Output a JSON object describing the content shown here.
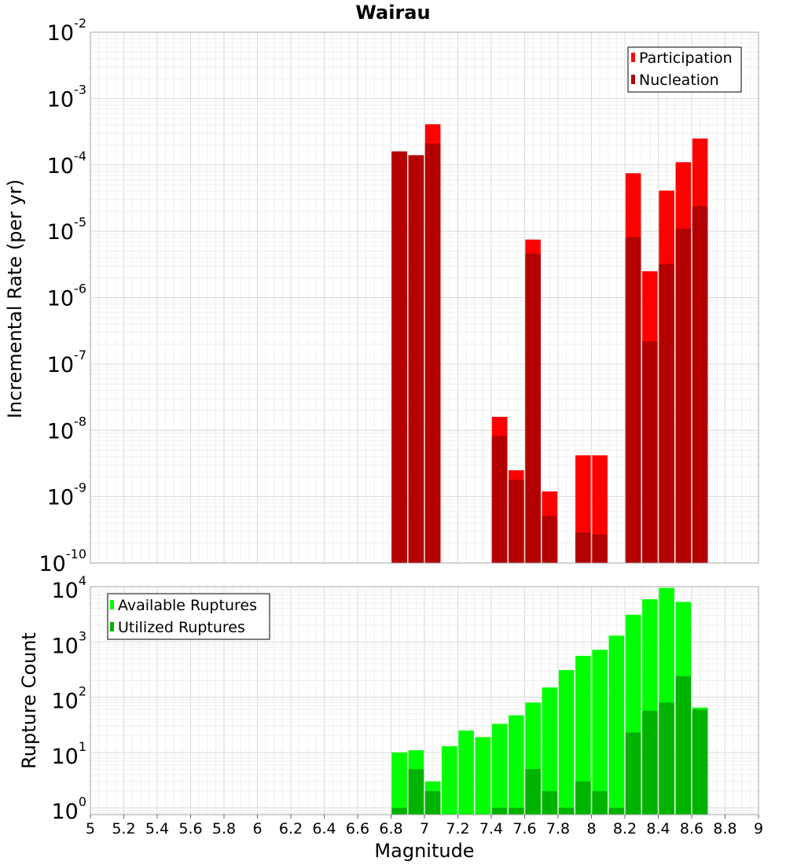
{
  "chart_data": [
    {
      "type": "bar",
      "title": "Wairau",
      "ylabel": "Incremental Rate (per yr)",
      "xlabel": "",
      "y_scale": "log",
      "ylim": [
        1e-10,
        0.01
      ],
      "xlim": [
        5,
        9
      ],
      "grid": true,
      "legend_position": "top-right",
      "x": [
        6.85,
        6.95,
        7.05,
        7.45,
        7.55,
        7.65,
        7.75,
        7.95,
        8.05,
        8.25,
        8.35,
        8.45,
        8.55,
        8.65
      ],
      "series": [
        {
          "name": "Participation",
          "color": "#ff0000",
          "values": [
            0.00016,
            0.00014,
            0.00041,
            1.6e-08,
            2.5e-09,
            7.5e-06,
            1.2e-09,
            4.2e-09,
            4.2e-09,
            7.5e-05,
            2.5e-06,
            4.1e-05,
            0.00011,
            0.00025
          ]
        },
        {
          "name": "Nucleation",
          "color": "#b30000",
          "values": [
            0.00016,
            0.00014,
            0.00021,
            8.2e-09,
            1.8e-09,
            4.6e-06,
            5.1e-10,
            2.9e-10,
            2.7e-10,
            8.2e-06,
            2.2e-07,
            3.2e-06,
            1.1e-05,
            2.4e-05
          ]
        }
      ]
    },
    {
      "type": "bar",
      "title": "",
      "ylabel": "Rupture Count",
      "xlabel": "Magnitude",
      "y_scale": "log",
      "ylim": [
        0.75,
        10000
      ],
      "xlim": [
        5,
        9
      ],
      "grid": true,
      "legend_position": "top-left",
      "x": [
        6.85,
        6.95,
        7.05,
        7.15,
        7.25,
        7.35,
        7.45,
        7.55,
        7.65,
        7.75,
        7.85,
        7.95,
        8.05,
        8.15,
        8.25,
        8.35,
        8.45,
        8.55,
        8.65
      ],
      "series": [
        {
          "name": "Available Ruptures",
          "color": "#00ff00",
          "values": [
            10,
            11,
            3,
            13,
            25,
            19,
            33,
            47,
            80,
            150,
            310,
            560,
            720,
            1300,
            3100,
            5900,
            9500,
            5300,
            65
          ]
        },
        {
          "name": "Utilized Ruptures",
          "color": "#00b300",
          "values": [
            1,
            5,
            2,
            0,
            0,
            0,
            1,
            1,
            5,
            2,
            1,
            3,
            2,
            1,
            23,
            57,
            80,
            240,
            60
          ]
        }
      ]
    }
  ],
  "x_ticks": [
    "5",
    "5.2",
    "5.4",
    "5.6",
    "5.8",
    "6",
    "6.2",
    "6.4",
    "6.6",
    "6.8",
    "7",
    "7.2",
    "7.4",
    "7.6",
    "7.8",
    "8",
    "8.2",
    "8.4",
    "8.6",
    "8.8",
    "9"
  ],
  "top_y_ticks": [
    {
      "base": "10",
      "exp": "-10"
    },
    {
      "base": "10",
      "exp": "-9"
    },
    {
      "base": "10",
      "exp": "-8"
    },
    {
      "base": "10",
      "exp": "-7"
    },
    {
      "base": "10",
      "exp": "-6"
    },
    {
      "base": "10",
      "exp": "-5"
    },
    {
      "base": "10",
      "exp": "-4"
    },
    {
      "base": "10",
      "exp": "-3"
    },
    {
      "base": "10",
      "exp": "-2"
    }
  ],
  "bottom_y_ticks": [
    {
      "base": "10",
      "exp": "0"
    },
    {
      "base": "10",
      "exp": "1"
    },
    {
      "base": "10",
      "exp": "2"
    },
    {
      "base": "10",
      "exp": "3"
    },
    {
      "base": "10",
      "exp": "4"
    }
  ]
}
